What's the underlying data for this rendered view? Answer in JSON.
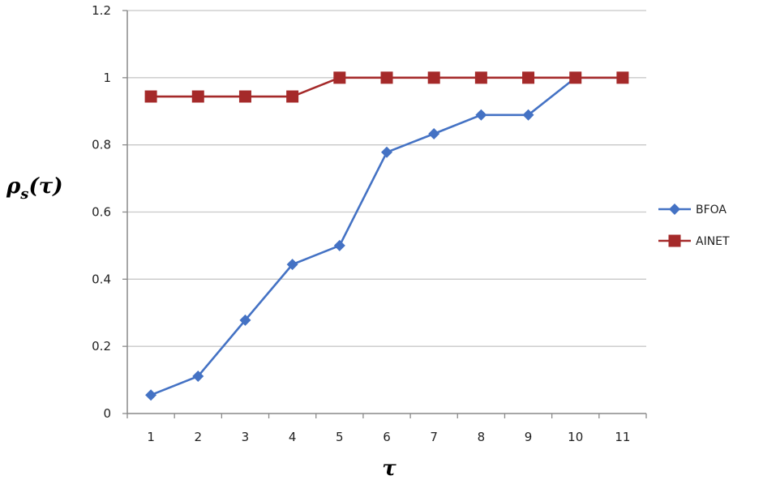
{
  "chart_data": {
    "type": "line",
    "title": "",
    "xlabel": "τ",
    "ylabel": "ρ",
    "ylabel_sub": "s",
    "ylabel_paren": "(τ)",
    "categories": [
      "1",
      "2",
      "3",
      "4",
      "5",
      "6",
      "7",
      "8",
      "9",
      "10",
      "11"
    ],
    "ylim": [
      0,
      1.2
    ],
    "yticks": [
      "0",
      "0.2",
      "0.4",
      "0.6",
      "0.8",
      "1",
      "1.2"
    ],
    "ytick_values": [
      0,
      0.2,
      0.4,
      0.6,
      0.8,
      1,
      1.2
    ],
    "grid": true,
    "legend_position": "right",
    "series": [
      {
        "name": "BFOA",
        "color": "#4472c4",
        "marker": "diamond",
        "values": [
          0.055,
          0.111,
          0.278,
          0.444,
          0.5,
          0.778,
          0.833,
          0.889,
          0.889,
          1.0,
          1.0
        ]
      },
      {
        "name": "AINET",
        "color": "#a52a2a",
        "marker": "square",
        "values": [
          0.944,
          0.944,
          0.944,
          0.944,
          1.0,
          1.0,
          1.0,
          1.0,
          1.0,
          1.0,
          1.0
        ]
      }
    ]
  }
}
